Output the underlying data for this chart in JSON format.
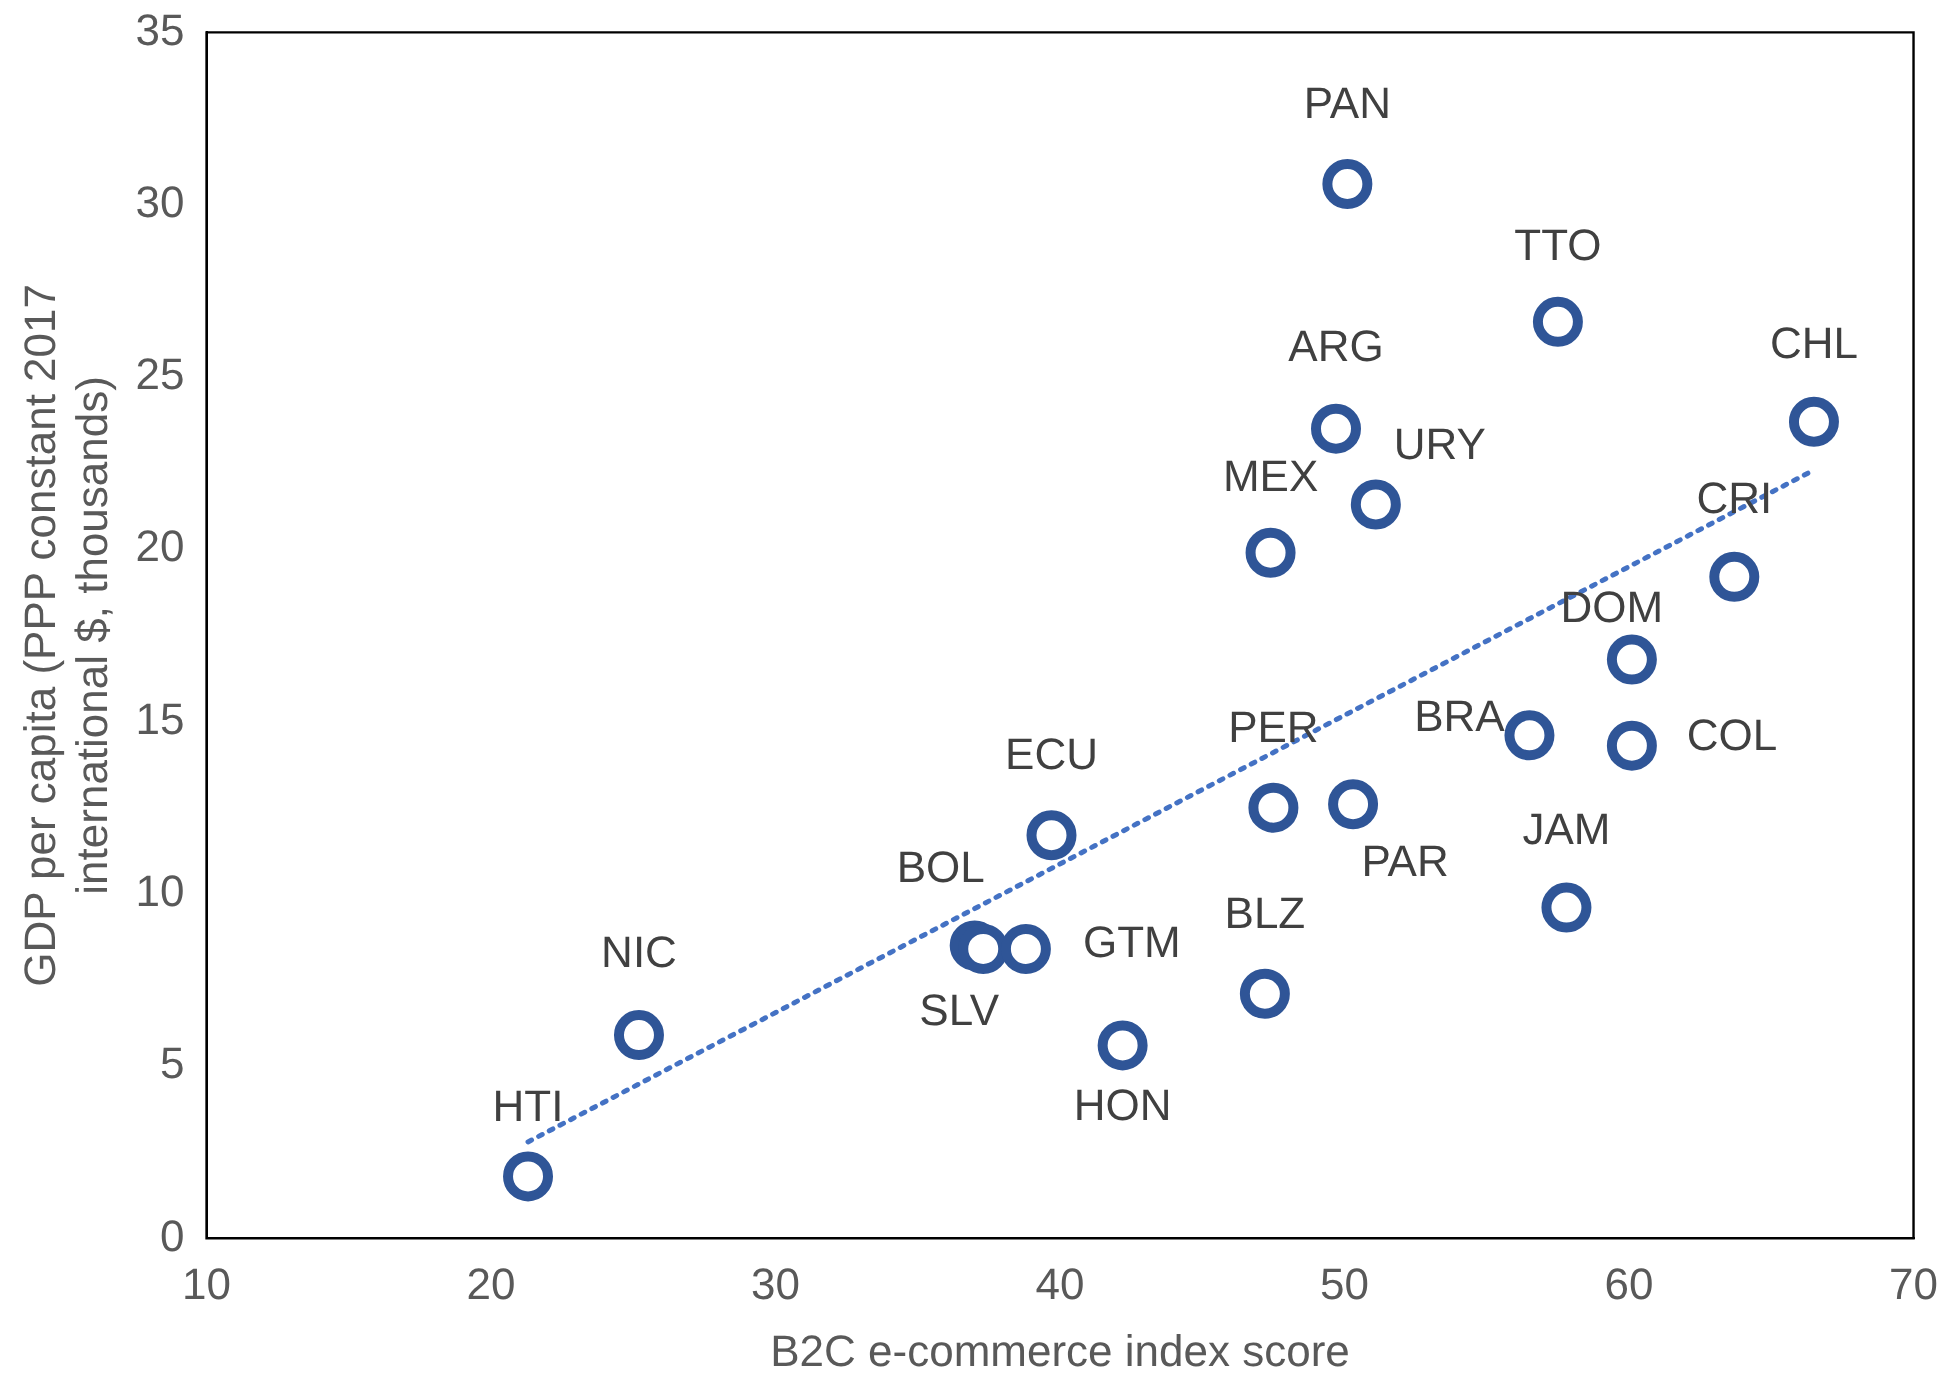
{
  "chart_data": {
    "type": "scatter",
    "xlabel": "B2C e-commerce index score",
    "ylabel": "GDP per capita (PPP constant 2017 international $, thousands)",
    "xlim": [
      10,
      70
    ],
    "xticks": [
      10,
      20,
      30,
      40,
      50,
      60,
      70
    ],
    "ylim": [
      0,
      35
    ],
    "yticks": [
      0,
      5,
      10,
      15,
      20,
      25,
      30,
      35
    ],
    "grid": false,
    "legend": false,
    "series": [
      {
        "marker": "circle",
        "color": "#2f5597",
        "x": [
          21.3,
          25.2,
          37.0,
          37.3,
          38.8,
          39.7,
          42.2,
          47.2,
          47.5,
          50.3,
          47.4,
          49.7,
          51.1,
          50.1,
          57.5,
          66.5,
          63.7,
          60.1,
          56.5,
          60.1,
          57.8
        ],
        "values": [
          1.8,
          5.9,
          8.5,
          8.4,
          8.4,
          11.7,
          5.6,
          7.1,
          12.5,
          12.6,
          19.9,
          23.5,
          21.3,
          30.6,
          26.6,
          23.7,
          19.2,
          16.8,
          14.6,
          14.3,
          9.6
        ]
      },
      {
        "type": "line",
        "color": "#4472c4",
        "line_style": "dotted",
        "x": [
          21.3,
          66.5
        ],
        "values": [
          2.8,
          22.3
        ]
      }
    ],
    "annotations": [
      {
        "text": "HTI",
        "x": 21.3,
        "y": 1.8
      },
      {
        "text": "NIC",
        "x": 25.2,
        "y": 5.9
      },
      {
        "text": "BOL",
        "x": 37.0,
        "y": 8.5
      },
      {
        "text": "SLV",
        "x": 37.3,
        "y": 8.4
      },
      {
        "text": "GTM",
        "x": 38.8,
        "y": 8.4
      },
      {
        "text": "ECU",
        "x": 39.7,
        "y": 11.7
      },
      {
        "text": "HON",
        "x": 42.2,
        "y": 5.6
      },
      {
        "text": "BLZ",
        "x": 47.2,
        "y": 7.1
      },
      {
        "text": "PER",
        "x": 47.5,
        "y": 12.5
      },
      {
        "text": "PAR",
        "x": 50.3,
        "y": 12.6
      },
      {
        "text": "MEX",
        "x": 47.4,
        "y": 19.9
      },
      {
        "text": "ARG",
        "x": 49.7,
        "y": 23.5
      },
      {
        "text": "URY",
        "x": 51.1,
        "y": 21.3
      },
      {
        "text": "PAN",
        "x": 50.1,
        "y": 30.6
      },
      {
        "text": "TTO",
        "x": 57.5,
        "y": 26.6
      },
      {
        "text": "CHL",
        "x": 66.5,
        "y": 23.7
      },
      {
        "text": "CRI",
        "x": 63.7,
        "y": 19.2
      },
      {
        "text": "DOM",
        "x": 60.1,
        "y": 16.8
      },
      {
        "text": "BRA",
        "x": 56.5,
        "y": 14.6
      },
      {
        "text": "COL",
        "x": 60.1,
        "y": 14.3
      },
      {
        "text": "JAM",
        "x": 57.8,
        "y": 9.6
      }
    ]
  }
}
